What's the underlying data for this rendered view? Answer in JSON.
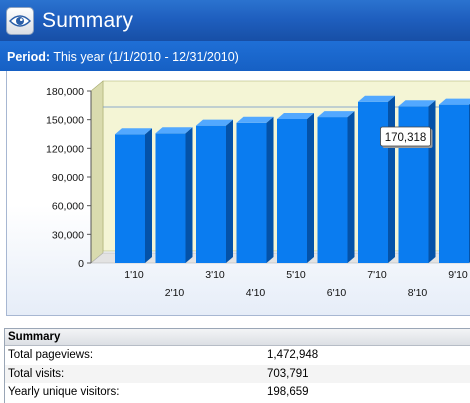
{
  "header": {
    "title": "Summary",
    "icon": "eye-icon"
  },
  "period": {
    "label": "Period:",
    "value": "This year (1/1/2010 - 12/31/2010)"
  },
  "chart_data": {
    "type": "bar",
    "categories": [
      "1'10",
      "2'10",
      "3'10",
      "4'10",
      "5'10",
      "6'10",
      "7'10",
      "8'10",
      "9'10"
    ],
    "values": [
      141000,
      142000,
      150000,
      153000,
      157000,
      159000,
      175000,
      170318,
      172000
    ],
    "ylim": [
      0,
      180000
    ],
    "yticks": [
      "0",
      "30,000",
      "60,000",
      "90,000",
      "120,000",
      "150,000",
      "180,000"
    ],
    "tooltip": {
      "category": "8'10",
      "text": "170,318"
    },
    "colors": {
      "bar": "#0a7cf0",
      "bar_side": "#0452a8",
      "bar_top": "#52a8ff",
      "wall": "#f4f5d5"
    }
  },
  "summary": {
    "heading": "Summary",
    "rows": [
      {
        "label": "Total pageviews:",
        "value": "1,472,948"
      },
      {
        "label": "Total visits:",
        "value": "703,791"
      },
      {
        "label": "Yearly unique visitors:",
        "value": "198,659"
      }
    ]
  }
}
